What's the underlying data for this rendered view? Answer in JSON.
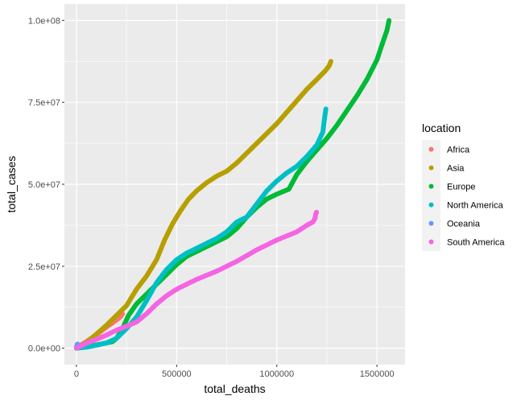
{
  "chart_data": {
    "type": "scatter",
    "xlabel": "total_deaths",
    "ylabel": "total_cases",
    "xlim": [
      -60000,
      1640000
    ],
    "ylim": [
      -5000000,
      105000000
    ],
    "x_ticks": [
      0,
      500000,
      1000000,
      1500000
    ],
    "x_tick_labels": [
      "0",
      "500000",
      "1000000",
      "1500000"
    ],
    "y_ticks": [
      0,
      25000000,
      50000000,
      75000000,
      100000000
    ],
    "y_tick_labels": [
      "0.0e+00",
      "2.5e+07",
      "5.0e+07",
      "7.5e+07",
      "1.0e+08"
    ],
    "grid": true,
    "legend_title": "location",
    "legend_position": "right",
    "series": [
      {
        "name": "Africa",
        "color": "#F8766D",
        "points": [
          [
            0,
            0
          ],
          [
            20000,
            900000
          ],
          [
            50000,
            2000000
          ],
          [
            80000,
            3300000
          ],
          [
            110000,
            4600000
          ],
          [
            140000,
            6000000
          ],
          [
            170000,
            7300000
          ],
          [
            200000,
            8600000
          ],
          [
            215000,
            9300000
          ],
          [
            225000,
            10000000
          ],
          [
            230000,
            10500000
          ]
        ]
      },
      {
        "name": "Asia",
        "color": "#B79F00",
        "points": [
          [
            0,
            0
          ],
          [
            30000,
            1000000
          ],
          [
            60000,
            2300000
          ],
          [
            100000,
            4300000
          ],
          [
            150000,
            7000000
          ],
          [
            200000,
            10000000
          ],
          [
            250000,
            13000000
          ],
          [
            300000,
            18000000
          ],
          [
            350000,
            22000000
          ],
          [
            400000,
            27000000
          ],
          [
            440000,
            33000000
          ],
          [
            480000,
            38000000
          ],
          [
            520000,
            42000000
          ],
          [
            560000,
            45500000
          ],
          [
            600000,
            48000000
          ],
          [
            650000,
            50500000
          ],
          [
            700000,
            52500000
          ],
          [
            750000,
            54000000
          ],
          [
            800000,
            56500000
          ],
          [
            850000,
            59500000
          ],
          [
            900000,
            62500000
          ],
          [
            950000,
            65500000
          ],
          [
            1000000,
            68500000
          ],
          [
            1050000,
            72000000
          ],
          [
            1100000,
            75500000
          ],
          [
            1150000,
            79000000
          ],
          [
            1200000,
            82000000
          ],
          [
            1240000,
            84500000
          ],
          [
            1260000,
            86000000
          ],
          [
            1270000,
            87500000
          ]
        ]
      },
      {
        "name": "Europe",
        "color": "#00BA38",
        "points": [
          [
            0,
            0
          ],
          [
            50000,
            400000
          ],
          [
            100000,
            1000000
          ],
          [
            150000,
            1600000
          ],
          [
            180000,
            2000000
          ],
          [
            200000,
            3000000
          ],
          [
            230000,
            6000000
          ],
          [
            260000,
            10000000
          ],
          [
            300000,
            13500000
          ],
          [
            350000,
            16500000
          ],
          [
            400000,
            19500000
          ],
          [
            450000,
            22500000
          ],
          [
            500000,
            25500000
          ],
          [
            550000,
            28000000
          ],
          [
            600000,
            29500000
          ],
          [
            650000,
            31000000
          ],
          [
            700000,
            32500000
          ],
          [
            750000,
            34000000
          ],
          [
            800000,
            36500000
          ],
          [
            850000,
            40000000
          ],
          [
            900000,
            43000000
          ],
          [
            950000,
            45500000
          ],
          [
            1000000,
            47000000
          ],
          [
            1060000,
            48500000
          ],
          [
            1100000,
            53000000
          ],
          [
            1150000,
            57000000
          ],
          [
            1200000,
            60500000
          ],
          [
            1250000,
            64000000
          ],
          [
            1300000,
            68000000
          ],
          [
            1350000,
            72500000
          ],
          [
            1400000,
            77000000
          ],
          [
            1450000,
            82000000
          ],
          [
            1500000,
            88000000
          ],
          [
            1530000,
            93500000
          ],
          [
            1550000,
            97000000
          ],
          [
            1560000,
            100000000
          ]
        ]
      },
      {
        "name": "North America",
        "color": "#00BFC4",
        "points": [
          [
            0,
            0
          ],
          [
            50000,
            300000
          ],
          [
            100000,
            900000
          ],
          [
            150000,
            1600000
          ],
          [
            200000,
            3000000
          ],
          [
            250000,
            6000000
          ],
          [
            300000,
            9500000
          ],
          [
            350000,
            14500000
          ],
          [
            400000,
            20000000
          ],
          [
            450000,
            24000000
          ],
          [
            500000,
            27000000
          ],
          [
            550000,
            29000000
          ],
          [
            600000,
            30500000
          ],
          [
            650000,
            32000000
          ],
          [
            700000,
            33500000
          ],
          [
            750000,
            35500000
          ],
          [
            800000,
            38500000
          ],
          [
            850000,
            40000000
          ],
          [
            900000,
            44000000
          ],
          [
            950000,
            48000000
          ],
          [
            1000000,
            51000000
          ],
          [
            1050000,
            53500000
          ],
          [
            1100000,
            55500000
          ],
          [
            1150000,
            58500000
          ],
          [
            1200000,
            62000000
          ],
          [
            1230000,
            66000000
          ],
          [
            1240000,
            71000000
          ],
          [
            1245000,
            73000000
          ]
        ]
      },
      {
        "name": "Oceania",
        "color": "#619CFF",
        "points": [
          [
            0,
            300000
          ],
          [
            1500,
            600000
          ],
          [
            3000,
            900000
          ],
          [
            4000,
            1100000
          ],
          [
            5000,
            1300000
          ]
        ]
      },
      {
        "name": "South America",
        "color": "#F564E3",
        "points": [
          [
            0,
            0
          ],
          [
            50000,
            1500000
          ],
          [
            100000,
            2700000
          ],
          [
            150000,
            4000000
          ],
          [
            200000,
            5500000
          ],
          [
            250000,
            6700000
          ],
          [
            300000,
            8000000
          ],
          [
            350000,
            10500000
          ],
          [
            400000,
            13500000
          ],
          [
            450000,
            16000000
          ],
          [
            500000,
            18000000
          ],
          [
            600000,
            21000000
          ],
          [
            700000,
            23500000
          ],
          [
            800000,
            26500000
          ],
          [
            900000,
            30000000
          ],
          [
            1000000,
            33000000
          ],
          [
            1100000,
            35500000
          ],
          [
            1150000,
            37500000
          ],
          [
            1180000,
            38500000
          ],
          [
            1190000,
            39500000
          ],
          [
            1195000,
            41000000
          ],
          [
            1198000,
            41500000
          ]
        ]
      }
    ]
  }
}
